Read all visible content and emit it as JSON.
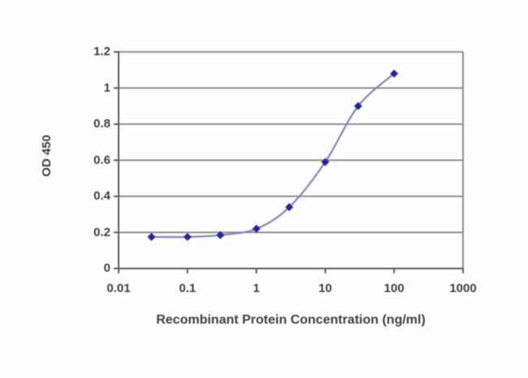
{
  "figure": {
    "background": "#fefefe",
    "kind": "ELISA dose-response standard curve"
  },
  "chart_data": {
    "type": "line",
    "x": [
      0.03,
      0.1,
      0.3,
      1,
      3,
      10,
      30,
      100
    ],
    "y": [
      0.175,
      0.175,
      0.185,
      0.22,
      0.34,
      0.59,
      0.9,
      1.08
    ],
    "title": "",
    "xlabel": "Recombinant Protein Concentration (ng/ml)",
    "ylabel": "OD 450",
    "x_scale": "log",
    "xlim": [
      0.01,
      1000
    ],
    "ylim": [
      0,
      1.2
    ],
    "x_ticks": [
      0.01,
      0.1,
      1,
      10,
      100,
      1000
    ],
    "x_tick_labels": [
      "0.01",
      "0.1",
      "1",
      "10",
      "100",
      "1000"
    ],
    "y_ticks": [
      0,
      0.2,
      0.4,
      0.6,
      0.8,
      1,
      1.2
    ],
    "y_tick_labels": [
      "0",
      "0.2",
      "0.4",
      "0.6",
      "0.8",
      "1",
      "1.2"
    ],
    "grid": "horizontal",
    "legend": "none",
    "marker_shape": "diamond",
    "line_style": "smooth",
    "colors": {
      "line": "#8084c0",
      "marker": "#26269a",
      "gridline": "#8f8f8f",
      "axis": "#5c5c5c",
      "tick_text": "#3d3d3d"
    }
  }
}
